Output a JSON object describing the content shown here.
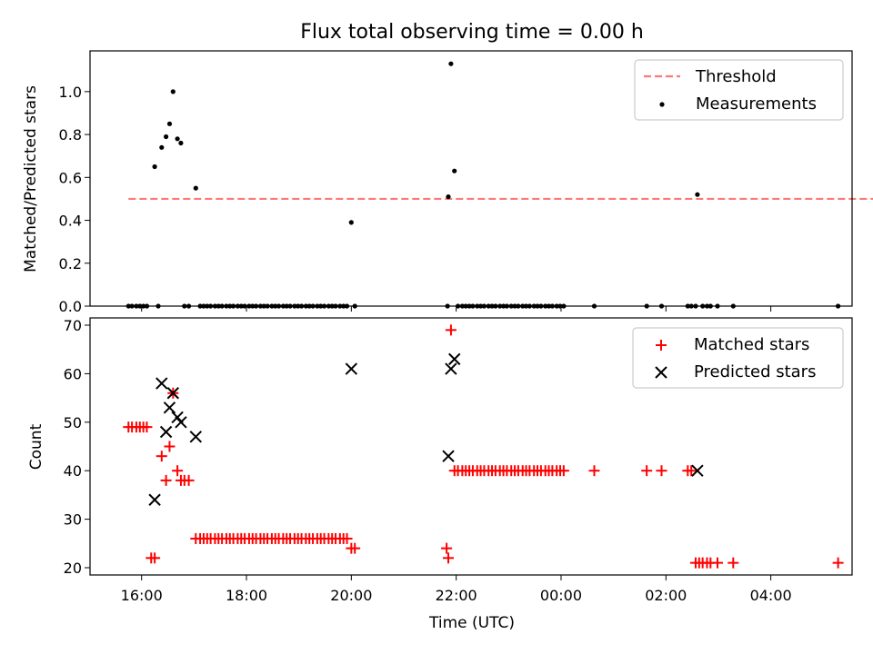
{
  "title": "Flux total observing time = 0.00 h",
  "chart_data": [
    {
      "type": "scatter",
      "ylabel": "Matched/Predicted stars",
      "xlabel": "",
      "xlim": [
        "15:01",
        "05:33"
      ],
      "ylim": [
        0,
        1.19
      ],
      "yticks": [
        0.0,
        0.2,
        0.4,
        0.6,
        0.8,
        1.0
      ],
      "ytick_labels": [
        "0.0",
        "0.2",
        "0.4",
        "0.6",
        "0.8",
        "1.0"
      ],
      "grid": false,
      "legend_position": "top-right",
      "threshold": {
        "name": "Threshold",
        "value": 0.5,
        "x_range": [
          "15:45",
          "05:57"
        ],
        "color": "#ff7777"
      },
      "series": [
        {
          "name": "Measurements",
          "color": "#000000",
          "marker": "dot",
          "points": [
            [
              "15:45",
              0
            ],
            [
              "15:49",
              0
            ],
            [
              "15:54",
              0
            ],
            [
              "15:58",
              0
            ],
            [
              "16:02",
              0
            ],
            [
              "16:06",
              0
            ],
            [
              "16:15",
              0.65
            ],
            [
              "16:19",
              0
            ],
            [
              "16:23",
              0.74
            ],
            [
              "16:28",
              0.79
            ],
            [
              "16:32",
              0.85
            ],
            [
              "16:36",
              1.0
            ],
            [
              "16:41",
              0.78
            ],
            [
              "16:45",
              0.76
            ],
            [
              "16:49",
              0
            ],
            [
              "16:54",
              0
            ],
            [
              "17:02",
              0.55
            ],
            [
              "17:07",
              0
            ],
            [
              "17:11",
              0
            ],
            [
              "17:15",
              0
            ],
            [
              "17:19",
              0
            ],
            [
              "17:24",
              0
            ],
            [
              "17:28",
              0
            ],
            [
              "17:32",
              0
            ],
            [
              "17:37",
              0
            ],
            [
              "17:41",
              0
            ],
            [
              "17:45",
              0
            ],
            [
              "17:50",
              0
            ],
            [
              "17:54",
              0
            ],
            [
              "17:58",
              0
            ],
            [
              "18:03",
              0
            ],
            [
              "18:07",
              0
            ],
            [
              "18:11",
              0
            ],
            [
              "18:16",
              0
            ],
            [
              "18:20",
              0
            ],
            [
              "18:24",
              0
            ],
            [
              "18:29",
              0
            ],
            [
              "18:33",
              0
            ],
            [
              "18:37",
              0
            ],
            [
              "18:42",
              0
            ],
            [
              "18:46",
              0
            ],
            [
              "18:50",
              0
            ],
            [
              "18:55",
              0
            ],
            [
              "18:59",
              0
            ],
            [
              "19:03",
              0
            ],
            [
              "19:08",
              0
            ],
            [
              "19:12",
              0
            ],
            [
              "19:16",
              0
            ],
            [
              "19:21",
              0
            ],
            [
              "19:25",
              0
            ],
            [
              "19:29",
              0
            ],
            [
              "19:34",
              0
            ],
            [
              "19:38",
              0
            ],
            [
              "19:42",
              0
            ],
            [
              "19:47",
              0
            ],
            [
              "19:51",
              0
            ],
            [
              "19:55",
              0
            ],
            [
              "20:00",
              0.39
            ],
            [
              "20:04",
              0
            ],
            [
              "21:50",
              0
            ],
            [
              "21:51",
              0.51
            ],
            [
              "21:54",
              1.13
            ],
            [
              "21:58",
              0.63
            ],
            [
              "22:02",
              0
            ],
            [
              "22:07",
              0
            ],
            [
              "22:11",
              0
            ],
            [
              "22:15",
              0
            ],
            [
              "22:19",
              0
            ],
            [
              "22:24",
              0
            ],
            [
              "22:28",
              0
            ],
            [
              "22:32",
              0
            ],
            [
              "22:37",
              0
            ],
            [
              "22:41",
              0
            ],
            [
              "22:45",
              0
            ],
            [
              "22:50",
              0
            ],
            [
              "22:54",
              0
            ],
            [
              "22:58",
              0
            ],
            [
              "23:03",
              0
            ],
            [
              "23:07",
              0
            ],
            [
              "23:11",
              0
            ],
            [
              "23:16",
              0
            ],
            [
              "23:20",
              0
            ],
            [
              "23:24",
              0
            ],
            [
              "23:29",
              0
            ],
            [
              "23:33",
              0
            ],
            [
              "23:37",
              0
            ],
            [
              "23:42",
              0
            ],
            [
              "23:46",
              0
            ],
            [
              "23:50",
              0
            ],
            [
              "23:55",
              0
            ],
            [
              "23:59",
              0
            ],
            [
              "00:03",
              0
            ],
            [
              "00:38",
              0
            ],
            [
              "01:38",
              0
            ],
            [
              "01:55",
              0
            ],
            [
              "02:25",
              0
            ],
            [
              "02:29",
              0
            ],
            [
              "02:34",
              0
            ],
            [
              "02:36",
              0.52
            ],
            [
              "02:42",
              0
            ],
            [
              "02:47",
              0
            ],
            [
              "02:51",
              0
            ],
            [
              "02:59",
              0
            ],
            [
              "03:17",
              0
            ],
            [
              "05:17",
              0
            ]
          ]
        }
      ]
    },
    {
      "type": "scatter",
      "ylabel": "Count",
      "xlabel": "Time (UTC)",
      "xlim": [
        "15:01",
        "05:33"
      ],
      "ylim": [
        18.5,
        71.5
      ],
      "yticks": [
        20,
        30,
        40,
        50,
        60,
        70
      ],
      "ytick_labels": [
        "20",
        "30",
        "40",
        "50",
        "60",
        "70"
      ],
      "xticks": [
        "16:00",
        "18:00",
        "20:00",
        "22:00",
        "00:00",
        "02:00",
        "04:00"
      ],
      "xtick_labels": [
        "16:00",
        "18:00",
        "20:00",
        "22:00",
        "00:00",
        "02:00",
        "04:00"
      ],
      "grid": false,
      "legend_position": "top-right",
      "series": [
        {
          "name": "Matched stars",
          "color": "#ff0000",
          "marker": "plus",
          "points": [
            [
              "15:45",
              49
            ],
            [
              "15:49",
              49
            ],
            [
              "15:54",
              49
            ],
            [
              "15:58",
              49
            ],
            [
              "16:02",
              49
            ],
            [
              "16:06",
              49
            ],
            [
              "16:11",
              22
            ],
            [
              "16:15",
              22
            ],
            [
              "16:23",
              43
            ],
            [
              "16:28",
              38
            ],
            [
              "16:32",
              45
            ],
            [
              "16:36",
              56
            ],
            [
              "16:41",
              40
            ],
            [
              "16:45",
              38
            ],
            [
              "16:49",
              38
            ],
            [
              "16:54",
              38
            ],
            [
              "17:02",
              26
            ],
            [
              "17:07",
              26
            ],
            [
              "17:11",
              26
            ],
            [
              "17:15",
              26
            ],
            [
              "17:19",
              26
            ],
            [
              "17:24",
              26
            ],
            [
              "17:28",
              26
            ],
            [
              "17:32",
              26
            ],
            [
              "17:37",
              26
            ],
            [
              "17:41",
              26
            ],
            [
              "17:45",
              26
            ],
            [
              "17:50",
              26
            ],
            [
              "17:54",
              26
            ],
            [
              "17:58",
              26
            ],
            [
              "18:03",
              26
            ],
            [
              "18:07",
              26
            ],
            [
              "18:11",
              26
            ],
            [
              "18:16",
              26
            ],
            [
              "18:20",
              26
            ],
            [
              "18:24",
              26
            ],
            [
              "18:29",
              26
            ],
            [
              "18:33",
              26
            ],
            [
              "18:37",
              26
            ],
            [
              "18:42",
              26
            ],
            [
              "18:46",
              26
            ],
            [
              "18:50",
              26
            ],
            [
              "18:55",
              26
            ],
            [
              "18:59",
              26
            ],
            [
              "19:03",
              26
            ],
            [
              "19:08",
              26
            ],
            [
              "19:12",
              26
            ],
            [
              "19:16",
              26
            ],
            [
              "19:21",
              26
            ],
            [
              "19:25",
              26
            ],
            [
              "19:29",
              26
            ],
            [
              "19:34",
              26
            ],
            [
              "19:38",
              26
            ],
            [
              "19:42",
              26
            ],
            [
              "19:47",
              26
            ],
            [
              "19:51",
              26
            ],
            [
              "19:55",
              26
            ],
            [
              "20:00",
              24
            ],
            [
              "20:04",
              24
            ],
            [
              "21:49",
              24
            ],
            [
              "21:51",
              22
            ],
            [
              "21:54",
              69
            ],
            [
              "21:58",
              40
            ],
            [
              "22:02",
              40
            ],
            [
              "22:07",
              40
            ],
            [
              "22:11",
              40
            ],
            [
              "22:15",
              40
            ],
            [
              "22:19",
              40
            ],
            [
              "22:24",
              40
            ],
            [
              "22:28",
              40
            ],
            [
              "22:32",
              40
            ],
            [
              "22:37",
              40
            ],
            [
              "22:41",
              40
            ],
            [
              "22:45",
              40
            ],
            [
              "22:50",
              40
            ],
            [
              "22:54",
              40
            ],
            [
              "22:58",
              40
            ],
            [
              "23:03",
              40
            ],
            [
              "23:07",
              40
            ],
            [
              "23:11",
              40
            ],
            [
              "23:16",
              40
            ],
            [
              "23:20",
              40
            ],
            [
              "23:24",
              40
            ],
            [
              "23:29",
              40
            ],
            [
              "23:33",
              40
            ],
            [
              "23:37",
              40
            ],
            [
              "23:42",
              40
            ],
            [
              "23:46",
              40
            ],
            [
              "23:50",
              40
            ],
            [
              "23:55",
              40
            ],
            [
              "23:59",
              40
            ],
            [
              "00:03",
              40
            ],
            [
              "00:38",
              40
            ],
            [
              "01:38",
              40
            ],
            [
              "01:55",
              40
            ],
            [
              "02:25",
              40
            ],
            [
              "02:29",
              40
            ],
            [
              "02:34",
              21
            ],
            [
              "02:38",
              21
            ],
            [
              "02:42",
              21
            ],
            [
              "02:47",
              21
            ],
            [
              "02:51",
              21
            ],
            [
              "02:59",
              21
            ],
            [
              "03:17",
              21
            ],
            [
              "05:17",
              21
            ]
          ]
        },
        {
          "name": "Predicted stars",
          "color": "#000000",
          "marker": "x",
          "points": [
            [
              "16:15",
              34
            ],
            [
              "16:23",
              58
            ],
            [
              "16:28",
              48
            ],
            [
              "16:32",
              53
            ],
            [
              "16:36",
              56
            ],
            [
              "16:41",
              51
            ],
            [
              "16:45",
              50
            ],
            [
              "17:02",
              47
            ],
            [
              "20:00",
              61
            ],
            [
              "21:51",
              43
            ],
            [
              "21:54",
              61
            ],
            [
              "21:58",
              63
            ],
            [
              "02:36",
              40
            ]
          ]
        }
      ]
    }
  ]
}
